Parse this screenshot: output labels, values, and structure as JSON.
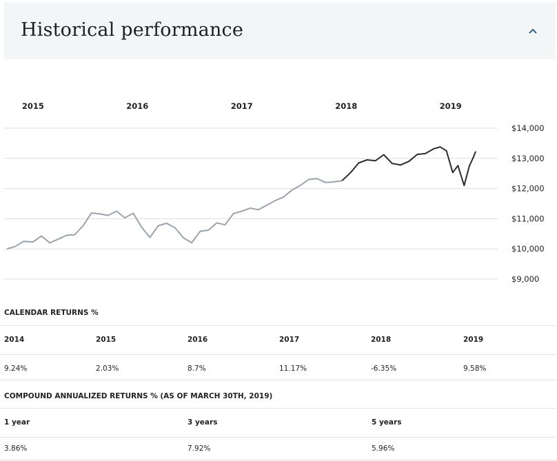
{
  "header": {
    "title": "Historical performance",
    "collapse_icon": "chevron-up-icon"
  },
  "chart_data": {
    "type": "line",
    "top_axis_labels": [
      "2015",
      "2016",
      "2017",
      "2018",
      "2019"
    ],
    "y_tick_labels": [
      "$14,000",
      "$13,000",
      "$12,000",
      "$11,000",
      "$10,000",
      "$9,000"
    ],
    "y_ticks": [
      14000,
      13000,
      12000,
      11000,
      10000,
      9000
    ],
    "ylim": [
      9000,
      14000
    ],
    "x_range": [
      2014.75,
      2019.24
    ],
    "grid": true,
    "colors": {
      "history": "#9aa3ad",
      "recent": "#2b2b2b"
    },
    "split_index": 40,
    "series": [
      {
        "values": [
          [
            2014.75,
            10000
          ],
          [
            2014.83,
            10080
          ],
          [
            2014.91,
            10250
          ],
          [
            2015.0,
            10230
          ],
          [
            2015.08,
            10430
          ],
          [
            2015.16,
            10200
          ],
          [
            2015.24,
            10320
          ],
          [
            2015.32,
            10450
          ],
          [
            2015.4,
            10470
          ],
          [
            2015.48,
            10770
          ],
          [
            2015.56,
            11190
          ],
          [
            2015.64,
            11160
          ],
          [
            2015.72,
            11110
          ],
          [
            2015.8,
            11250
          ],
          [
            2015.88,
            11030
          ],
          [
            2015.96,
            11180
          ],
          [
            2016.04,
            10720
          ],
          [
            2016.12,
            10380
          ],
          [
            2016.2,
            10770
          ],
          [
            2016.28,
            10850
          ],
          [
            2016.36,
            10700
          ],
          [
            2016.44,
            10370
          ],
          [
            2016.52,
            10200
          ],
          [
            2016.6,
            10580
          ],
          [
            2016.68,
            10620
          ],
          [
            2016.76,
            10860
          ],
          [
            2016.84,
            10800
          ],
          [
            2016.92,
            11170
          ],
          [
            2017.0,
            11250
          ],
          [
            2017.08,
            11350
          ],
          [
            2017.16,
            11300
          ],
          [
            2017.24,
            11450
          ],
          [
            2017.32,
            11600
          ],
          [
            2017.4,
            11720
          ],
          [
            2017.48,
            11950
          ],
          [
            2017.56,
            12100
          ],
          [
            2017.64,
            12300
          ],
          [
            2017.72,
            12330
          ],
          [
            2017.8,
            12200
          ],
          [
            2017.88,
            12220
          ],
          [
            2017.96,
            12260
          ],
          [
            2018.04,
            12520
          ],
          [
            2018.12,
            12850
          ],
          [
            2018.2,
            12950
          ],
          [
            2018.28,
            12920
          ],
          [
            2018.36,
            13120
          ],
          [
            2018.44,
            12830
          ],
          [
            2018.52,
            12780
          ],
          [
            2018.6,
            12900
          ],
          [
            2018.68,
            13130
          ],
          [
            2018.76,
            13160
          ],
          [
            2018.84,
            13320
          ],
          [
            2018.9,
            13380
          ],
          [
            2018.96,
            13250
          ],
          [
            2019.02,
            12530
          ],
          [
            2019.07,
            12760
          ],
          [
            2019.13,
            12100
          ],
          [
            2019.18,
            12750
          ],
          [
            2019.22,
            13050
          ],
          [
            2019.24,
            13230
          ]
        ]
      }
    ]
  },
  "calendar_returns": {
    "title": "CALENDAR RETURNS %",
    "years": [
      "2014",
      "2015",
      "2016",
      "2017",
      "2018",
      "2019"
    ],
    "values": [
      "9.24%",
      "2.03%",
      "8.7%",
      "11.17%",
      "-6.35%",
      "9.58%"
    ]
  },
  "compound_returns": {
    "title": "COMPOUND ANNUALIZED RETURNS % (AS OF MARCH 30TH, 2019)",
    "periods": [
      "1 year",
      "3 years",
      "5 years"
    ],
    "values": [
      "3.86%",
      "7.92%",
      "5.96%"
    ]
  }
}
